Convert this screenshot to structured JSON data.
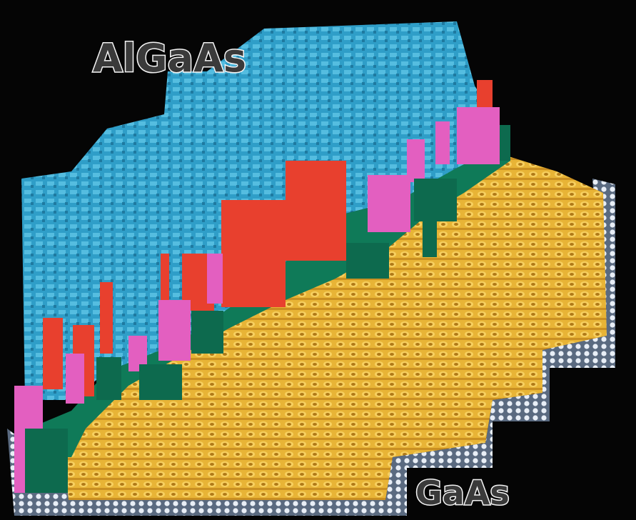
{
  "image": {
    "labels": [
      "AlGaAs",
      "GaAs"
    ]
  }
}
